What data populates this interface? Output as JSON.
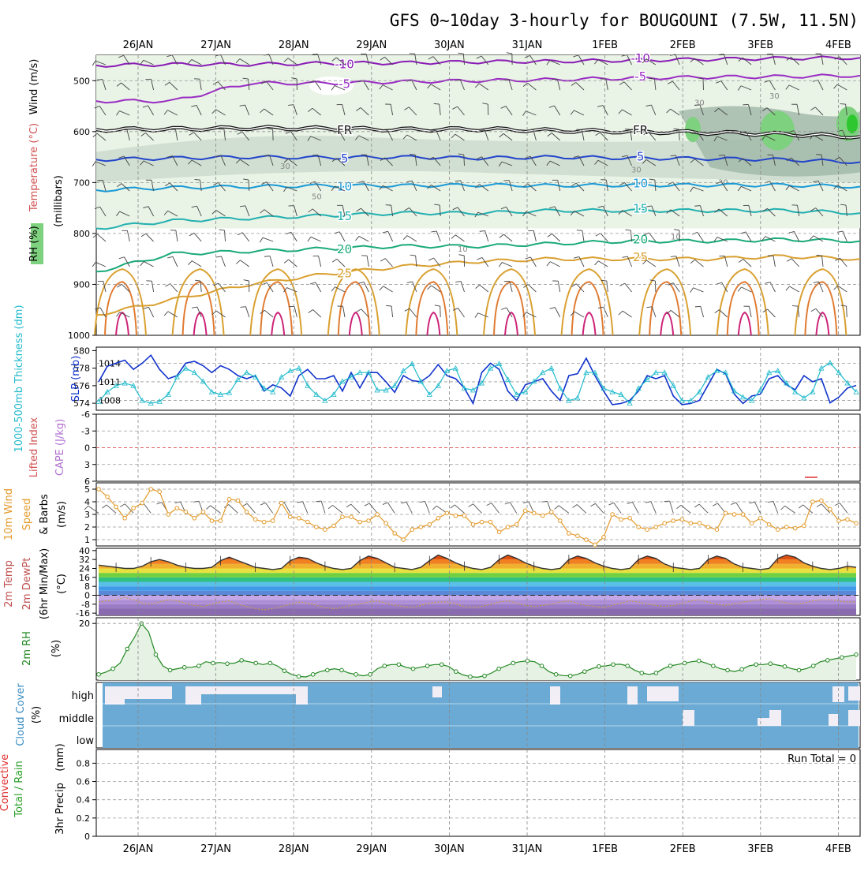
{
  "title": "GFS 0~10day 3-hourly for BOUGOUNI (7.5W, 11.5N)",
  "date_labels": [
    "26JAN",
    "27JAN",
    "28JAN",
    "29JAN",
    "30JAN",
    "31JAN",
    "1FEB",
    "2FEB",
    "3FEB",
    "4FEB"
  ],
  "colors": {
    "rh_light": "#e9f3e6",
    "rh_mid": "#c5d6c8",
    "rh_dark": "#9fb6a7",
    "rh_green": "#7ed17e",
    "rh_bright": "#2fc72f",
    "temp_minus10": "#8a1cb6",
    "temp_minus5": "#9a2cc4",
    "fr": "#111111",
    "temp_5": "#2244cc",
    "temp_10": "#1a9ad6",
    "temp_15": "#22b0b0",
    "temp_20": "#1aaa7a",
    "temp_25": "#d9a030",
    "temp_30": "#e07a30",
    "temp_35": "#cc2277",
    "slp": "#1133cc",
    "thickness": "#22bbcc",
    "wind_speed": "#e39a2a",
    "rh2m": "#228822",
    "cloud": "#6aaad4",
    "cloud_clear": "#f2eef6"
  },
  "chart_data": [
    {
      "type": "contour",
      "panel": "upper-air",
      "ylabel_rh": "RH (%)",
      "ylabel_temp": "Temperature (°C)",
      "ylabel_wind": "Wind (m/s)",
      "ylabel_pressure": "(millibars)",
      "ylim": [
        1000,
        450
      ],
      "y_ticks": [
        500,
        600,
        700,
        800,
        900,
        1000
      ],
      "rh_contour_labels": [
        "30",
        "50",
        "30",
        "30",
        "10",
        "10",
        "30",
        "30"
      ],
      "temperature_isotherms": [
        {
          "name": "-10",
          "level_mb": [
            470,
            468,
            468,
            466,
            465,
            463,
            462,
            460,
            458,
            456,
            455
          ],
          "label": "-10"
        },
        {
          "name": "-5",
          "level_mb": [
            540,
            540,
            505,
            505,
            502,
            500,
            498,
            495,
            493,
            492,
            490
          ],
          "label": "-5"
        },
        {
          "name": "FR",
          "level_mb": [
            596,
            595,
            593,
            594,
            596,
            595,
            598,
            600,
            602,
            605,
            610
          ],
          "label": "FR"
        },
        {
          "name": "5",
          "level_mb": [
            655,
            652,
            650,
            651,
            650,
            652,
            650,
            652,
            653,
            655,
            660
          ],
          "label": "5"
        },
        {
          "name": "10",
          "level_mb": [
            715,
            710,
            708,
            706,
            706,
            705,
            706,
            705,
            705,
            705,
            708
          ],
          "label": "10"
        },
        {
          "name": "15",
          "level_mb": [
            790,
            775,
            770,
            765,
            760,
            760,
            755,
            755,
            755,
            755,
            760
          ],
          "label": "15"
        },
        {
          "name": "20",
          "level_mb": [
            875,
            840,
            835,
            830,
            825,
            825,
            820,
            815,
            815,
            812,
            815
          ],
          "label": "20"
        },
        {
          "name": "25",
          "level_mb": [
            960,
            930,
            900,
            880,
            865,
            855,
            850,
            850,
            850,
            845,
            850
          ],
          "label": "25"
        }
      ]
    },
    {
      "type": "line",
      "panel": "thickness-slp",
      "ylabel_left": "1000-500mb Thickness (dm)",
      "ylabel_right": "SLP (mb)",
      "left_ticks": [
        574,
        576,
        578,
        580
      ],
      "right_ticks": [
        1008,
        1011,
        1014
      ],
      "left_ylim": [
        573.2,
        580.4
      ],
      "right_ylim": [
        1006.4,
        1016.6
      ],
      "series": [
        {
          "name": "SLP (mb)",
          "axis": "right",
          "values": [
            1011,
            1013.5,
            1014,
            1014.5,
            1013,
            1014,
            1015.3,
            1013,
            1011.5,
            1012,
            1014,
            1014.3,
            1013.6,
            1012.5,
            1013.6,
            1013,
            1012,
            1011.5,
            1012,
            1009.5,
            1010.5,
            1010,
            1008.7,
            1012,
            1013,
            1011.5,
            1011.5,
            1012,
            1009.5,
            1012.5,
            1010,
            1012.5,
            1012.5,
            1011,
            1009.3,
            1012,
            1011.2,
            1011,
            1012,
            1013.8,
            1012,
            1011.5,
            1010,
            1007.5,
            1012.5,
            1014,
            1013,
            1009.5,
            1008,
            1010.5,
            1011,
            1011.5,
            1009.5,
            1008,
            1012,
            1012.3,
            1014.8,
            1012,
            1009.5,
            1007.3,
            1007.5,
            1008,
            1009.5,
            1012,
            1011.5,
            1012,
            1008.7,
            1007.3,
            1007.5,
            1008,
            1010.5,
            1013,
            1012.3,
            1009,
            1007.5,
            1008.7,
            1009,
            1011.5,
            1012,
            1010.5,
            1009.7,
            1012,
            1011,
            1011.5,
            1007.6,
            1008.5,
            1010,
            1010.4
          ]
        },
        {
          "name": "1000-500mb Thickness (dm)",
          "axis": "left",
          "values": [
            574.2,
            575.3,
            576,
            576.3,
            576,
            574.3,
            574,
            574.2,
            575,
            577,
            578,
            577.5,
            576.5,
            575.3,
            575,
            575.2,
            576.7,
            577.5,
            577,
            575.7,
            575.3,
            577,
            577.7,
            578,
            576,
            575,
            574.3,
            575,
            576.5,
            577,
            577.5,
            577.5,
            575.5,
            575.5,
            576,
            577.7,
            578.5,
            576.5,
            575,
            576,
            577.7,
            578,
            575.7,
            575.5,
            576.3,
            578,
            578.5,
            576.7,
            575,
            575.3,
            576.5,
            577.5,
            578,
            575.7,
            574.3,
            574.6,
            577.5,
            577.5,
            575.7,
            575.3,
            575,
            574,
            575.7,
            576.7,
            577.5,
            577.5,
            576,
            574.3,
            574.3,
            575.3,
            577,
            577.7,
            577.5,
            575.4,
            574.7,
            574.3,
            575.5,
            577.5,
            577.7,
            576.3,
            575.3,
            574.6,
            575.3,
            578,
            578.6,
            577.5,
            576.3,
            575.3
          ]
        }
      ]
    },
    {
      "type": "line",
      "panel": "cape-li",
      "ylabel_left": "Lifted Index",
      "ylabel_right": "CAPE (J/kg)",
      "left_ticks": [
        "-6",
        "-3",
        "0",
        "3",
        "6"
      ],
      "ylim": [
        6,
        -6
      ],
      "series": [
        {
          "name": "Lifted Index",
          "values": []
        }
      ]
    },
    {
      "type": "line",
      "panel": "wind-10m",
      "ylabel_a": "10m Wind",
      "ylabel_b": "Speed",
      "ylabel_c": "& Barbs",
      "ylabel_unit": "(m/s)",
      "y_ticks": [
        1,
        2,
        3,
        4,
        5
      ],
      "ylim": [
        0.5,
        5.5
      ],
      "series": [
        {
          "name": "10m Wind Speed",
          "values": [
            5,
            4.4,
            3.6,
            2.7,
            3.5,
            3.9,
            5,
            4.8,
            3,
            3.5,
            3.2,
            2.7,
            3.2,
            2.5,
            2.5,
            4.2,
            4.1,
            3.2,
            2.6,
            2.4,
            2.5,
            3.9,
            2.8,
            2.7,
            2.4,
            2.0,
            1.8,
            2.1,
            2.8,
            2.8,
            2.4,
            2.5,
            3.0,
            2.3,
            1.5,
            1.0,
            1.8,
            2.0,
            2.2,
            2.7,
            3.1,
            2.9,
            2.9,
            2.2,
            2.4,
            2.4,
            1.6,
            2.0,
            2.2,
            3.3,
            3.1,
            2.9,
            3.2,
            2.5,
            1.5,
            1.3,
            1.0,
            0.6,
            1.2,
            3.0,
            2.6,
            2.7,
            2.0,
            1.8,
            2.0,
            2.3,
            2.5,
            2.6,
            2.3,
            2.3,
            2.0,
            1.8,
            3.1,
            3.0,
            3.0,
            2.3,
            2.7,
            2.2,
            1.8,
            2.0,
            1.9,
            2.1,
            4.0,
            4.1,
            3.4,
            2.5,
            2.6,
            2.3
          ]
        }
      ]
    },
    {
      "type": "area",
      "panel": "temperature-2m",
      "ylabel_a": "2m Temp",
      "ylabel_b": "2m DewPt",
      "ylabel_c": "(6hr Min/Max)",
      "ylabel_unit": "(°C)",
      "y_ticks": [
        -16,
        -8,
        0,
        8,
        16,
        24,
        32,
        40
      ],
      "ylim": [
        -18,
        42
      ],
      "series": [
        {
          "name": "2m Temp",
          "values": [
            27,
            26,
            25,
            24,
            24,
            26,
            30,
            32,
            30,
            27,
            25,
            24,
            24,
            25,
            31,
            34,
            31,
            28,
            25,
            24,
            23,
            24,
            31,
            34,
            33,
            29,
            26,
            24,
            23,
            24,
            31,
            35,
            33,
            29,
            25,
            24,
            23,
            25,
            31,
            36,
            33,
            29,
            26,
            24,
            23,
            25,
            32,
            36,
            33,
            29,
            26,
            24,
            23,
            24,
            32,
            35,
            33,
            29,
            26,
            24,
            23,
            24,
            32,
            35,
            33,
            28,
            25,
            24,
            23,
            24,
            32,
            35,
            33,
            28,
            25,
            24,
            23,
            24,
            33,
            36,
            34,
            29,
            26,
            24,
            23,
            24,
            26,
            25
          ]
        },
        {
          "name": "2m DewPt",
          "values": [
            -6,
            -5,
            -4,
            -2,
            -4,
            -7,
            -8,
            -6,
            -4,
            -5,
            -7,
            -9,
            -10,
            -8,
            -6,
            -5,
            -8,
            -10,
            -12,
            -13,
            -12,
            -10,
            -8,
            -6,
            -7,
            -9,
            -11,
            -12,
            -11,
            -9,
            -8,
            -6,
            -5,
            -7,
            -9,
            -10,
            -11,
            -9,
            -7,
            -6,
            -6,
            -8,
            -10,
            -11,
            -10,
            -8,
            -6,
            -5,
            -7,
            -9,
            -10,
            -9,
            -8,
            -6,
            -5,
            -7,
            -9,
            -10,
            -11,
            -9,
            -7,
            -5,
            -6,
            -8,
            -9,
            -10,
            -9,
            -7,
            -5,
            -4,
            -6,
            -8,
            -9,
            -8,
            -6,
            -5,
            -4,
            -3,
            -5,
            -7,
            -8,
            -7,
            -5,
            -4,
            -4,
            -5,
            -6,
            -6
          ]
        }
      ]
    },
    {
      "type": "area",
      "panel": "rh-2m",
      "ylabel": "2m RH",
      "ylabel_unit": "(%)",
      "y_ticks": [
        20
      ],
      "ylim": [
        0,
        22
      ],
      "series": [
        {
          "name": "2m RH",
          "values": [
            2,
            2.8,
            4,
            6,
            11,
            15,
            20,
            17,
            9,
            5,
            3.5,
            4,
            4.5,
            4.5,
            5,
            6.5,
            6,
            6.2,
            5.8,
            6,
            7,
            6.5,
            6,
            5.5,
            6,
            5,
            3.3,
            2,
            1.3,
            1.1,
            2,
            3,
            3.5,
            4,
            3.5,
            2.5,
            2,
            1.5,
            2,
            4,
            5,
            5.5,
            5.5,
            4.5,
            4,
            4.5,
            5,
            5.5,
            5.5,
            4.8,
            3,
            1.8,
            1.2,
            1,
            1.5,
            2.5,
            4,
            5,
            6,
            6.5,
            6.8,
            6.5,
            5,
            3,
            2,
            1.6,
            1.5,
            2,
            3,
            4,
            4.8,
            5,
            5.5,
            5.6,
            5,
            3.5,
            2.5,
            2,
            2.5,
            4,
            5,
            5.5,
            6,
            6.5,
            6.8,
            6,
            5,
            4,
            3.5,
            3,
            3.8,
            5,
            5.5,
            5.5,
            5.8,
            5.3,
            4.8,
            4,
            3.5,
            4,
            5,
            6.5,
            7,
            7.5,
            8,
            8.5,
            9
          ]
        }
      ]
    },
    {
      "type": "heatmap",
      "panel": "cloud-cover",
      "ylabel_a": "Cloud Cover",
      "ylabel_unit": "(%)",
      "y_ticks": [
        "high",
        "middle",
        "low"
      ]
    },
    {
      "type": "bar",
      "panel": "precipitation",
      "ylabel_a": "Total / Rain",
      "ylabel_b": "Convective",
      "ylabel_c": "3hr Precip",
      "ylabel_unit": "(mm)",
      "y_ticks": [
        "0",
        "0.2",
        "0.4",
        "0.6",
        "0.8"
      ],
      "ylim": [
        0,
        0.95
      ],
      "annotation": "Run Total = 0",
      "series": [
        {
          "name": "Total / Rain",
          "values": []
        }
      ]
    }
  ]
}
